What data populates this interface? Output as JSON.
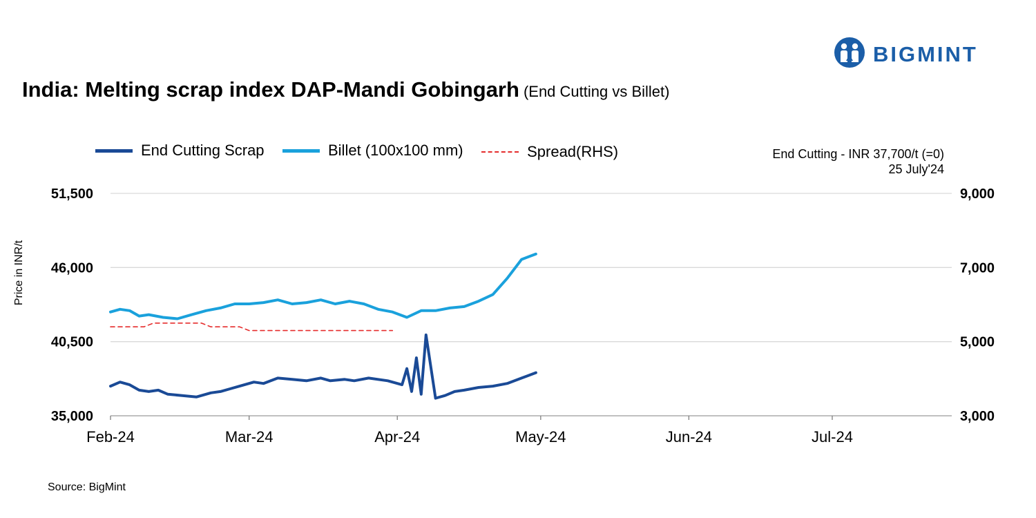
{
  "brand": {
    "logo_text": "BIGMINT",
    "logo_icon": "bigmint-people-icon",
    "color": "#1b5ea8"
  },
  "title": "India: Melting scrap index DAP-Mandi Gobingarh",
  "subtitle": "(End Cutting vs Billet)",
  "note": {
    "line1": "End Cutting - INR 37,700/t (=0)",
    "line2": "25 July'24"
  },
  "source": "Source: BigMint",
  "chart_data": {
    "type": "line",
    "title": "India: Melting scrap index DAP-Mandi Gobingarh",
    "ylabel": "Price in INR/t",
    "ylabel_right": "",
    "ylim": [
      35000,
      51500
    ],
    "ylim_right": [
      3000,
      9000
    ],
    "yticks": [
      "35,000",
      "40,500",
      "46,000",
      "51,500"
    ],
    "yticks_right": [
      "3,000",
      "5,000",
      "7,000",
      "9,000"
    ],
    "xlim": [
      "2024-02-01",
      "2024-07-26"
    ],
    "x_ticks": [
      {
        "date": "2024-02-01",
        "label": "Feb-24"
      },
      {
        "date": "2024-03-01",
        "label": "Mar-24"
      },
      {
        "date": "2024-04-01",
        "label": "Apr-24"
      },
      {
        "date": "2024-05-01",
        "label": "May-24"
      },
      {
        "date": "2024-06-01",
        "label": "Jun-24"
      },
      {
        "date": "2024-07-01",
        "label": "Jul-24"
      }
    ],
    "legend_position": "top-left",
    "grid": "horizontal",
    "series": [
      {
        "name": "End Cutting Scrap",
        "axis": "left",
        "color": "#1a4a96",
        "style": "solid",
        "points": [
          [
            "2024-02-01",
            37200
          ],
          [
            "2024-02-03",
            37500
          ],
          [
            "2024-02-05",
            37300
          ],
          [
            "2024-02-07",
            36900
          ],
          [
            "2024-02-09",
            36800
          ],
          [
            "2024-02-11",
            36900
          ],
          [
            "2024-02-13",
            36600
          ],
          [
            "2024-02-16",
            36500
          ],
          [
            "2024-02-19",
            36400
          ],
          [
            "2024-02-22",
            36700
          ],
          [
            "2024-02-24",
            36800
          ],
          [
            "2024-02-26",
            37000
          ],
          [
            "2024-02-28",
            37200
          ],
          [
            "2024-03-02",
            37500
          ],
          [
            "2024-03-04",
            37400
          ],
          [
            "2024-03-07",
            37800
          ],
          [
            "2024-03-10",
            37700
          ],
          [
            "2024-03-13",
            37600
          ],
          [
            "2024-03-16",
            37800
          ],
          [
            "2024-03-18",
            37600
          ],
          [
            "2024-03-21",
            37700
          ],
          [
            "2024-03-23",
            37600
          ],
          [
            "2024-03-26",
            37800
          ],
          [
            "2024-03-30",
            37600
          ],
          [
            "2024-04-02",
            37300
          ],
          [
            "2024-04-04",
            36800
          ],
          [
            "2024-04-06",
            36600
          ],
          [
            "2024-04-09",
            36300
          ],
          [
            "2024-04-11",
            36500
          ],
          [
            "2024-04-13",
            36800
          ],
          [
            "2024-04-15",
            36900
          ],
          [
            "2024-04-18",
            37100
          ],
          [
            "2024-04-21",
            37200
          ],
          [
            "2024-04-24",
            37400
          ],
          [
            "2024-04-27",
            37800
          ],
          [
            "2024-04-30",
            38200
          ],
          [
            "2024-04-03",
            38500
          ],
          [
            "2024-04-05",
            39300
          ],
          [
            "2024-04-07",
            41000
          ]
        ]
      },
      {
        "name": "Billet (100x100 mm)",
        "axis": "left",
        "color": "#1aa1dc",
        "style": "solid",
        "points": [
          [
            "2024-02-01",
            42700
          ],
          [
            "2024-02-03",
            42900
          ],
          [
            "2024-02-05",
            42800
          ],
          [
            "2024-02-07",
            42400
          ],
          [
            "2024-02-09",
            42500
          ],
          [
            "2024-02-12",
            42300
          ],
          [
            "2024-02-15",
            42200
          ],
          [
            "2024-02-18",
            42500
          ],
          [
            "2024-02-21",
            42800
          ],
          [
            "2024-02-24",
            43000
          ],
          [
            "2024-02-27",
            43300
          ],
          [
            "2024-03-01",
            43300
          ],
          [
            "2024-03-04",
            43400
          ],
          [
            "2024-03-07",
            43600
          ],
          [
            "2024-03-10",
            43300
          ],
          [
            "2024-03-13",
            43400
          ],
          [
            "2024-03-16",
            43600
          ],
          [
            "2024-03-19",
            43300
          ],
          [
            "2024-03-22",
            43500
          ],
          [
            "2024-03-25",
            43300
          ],
          [
            "2024-03-28",
            42900
          ],
          [
            "2024-03-31",
            42700
          ],
          [
            "2024-04-03",
            42300
          ],
          [
            "2024-04-06",
            42800
          ],
          [
            "2024-04-09",
            42800
          ],
          [
            "2024-04-12",
            43000
          ],
          [
            "2024-04-15",
            43100
          ],
          [
            "2024-04-18",
            43500
          ],
          [
            "2024-04-21",
            44000
          ],
          [
            "2024-04-24",
            45200
          ],
          [
            "2024-04-27",
            46600
          ],
          [
            "2024-04-30",
            47000
          ]
        ]
      },
      {
        "name": "Spread(RHS)",
        "axis": "right",
        "color": "#e52b2b",
        "style": "dashed",
        "points": [
          [
            "2024-02-01",
            5400
          ],
          [
            "2024-02-08",
            5400
          ],
          [
            "2024-02-10",
            5500
          ],
          [
            "2024-02-20",
            5500
          ],
          [
            "2024-02-22",
            5400
          ],
          [
            "2024-02-28",
            5400
          ],
          [
            "2024-03-01",
            5300
          ],
          [
            "2024-03-31",
            5300
          ]
        ]
      }
    ]
  }
}
